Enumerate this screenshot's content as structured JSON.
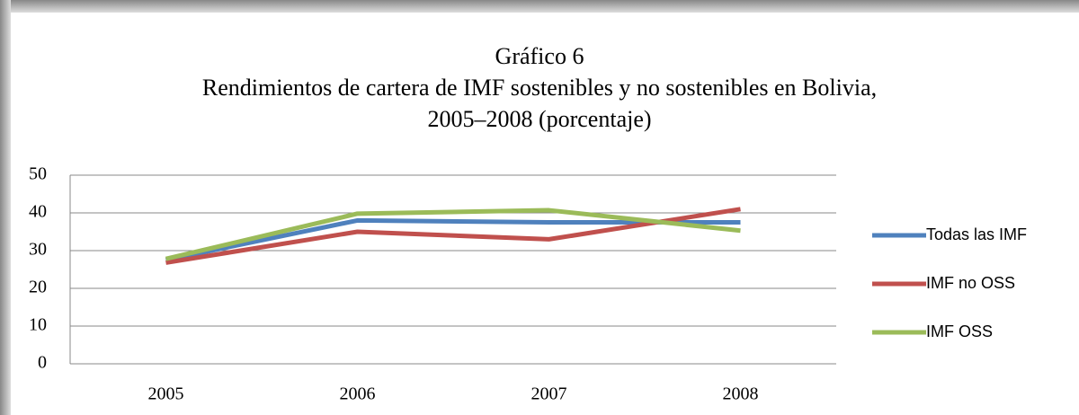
{
  "chart_data": {
    "type": "line",
    "title": "Gráfico 6",
    "subtitle_lines": [
      "Rendimientos de cartera de IMF sostenibles y no sostenibles en Bolivia,",
      "2005–2008 (porcentaje)"
    ],
    "categories": [
      "2005",
      "2006",
      "2007",
      "2008"
    ],
    "series": [
      {
        "name": "Todas las IMF",
        "color": "#4f81bd",
        "values": [
          27.5,
          38,
          37.5,
          37.5
        ]
      },
      {
        "name": "IMF no OSS",
        "color": "#c0504d",
        "values": [
          26.8,
          35,
          33,
          41
        ]
      },
      {
        "name": "IMF OSS",
        "color": "#9bbb59",
        "values": [
          27.8,
          39.8,
          40.7,
          35.3
        ]
      }
    ],
    "ylim": [
      0,
      50
    ],
    "yticks": [
      0,
      10,
      20,
      30,
      40,
      50
    ],
    "grid": true,
    "legend": "right"
  }
}
